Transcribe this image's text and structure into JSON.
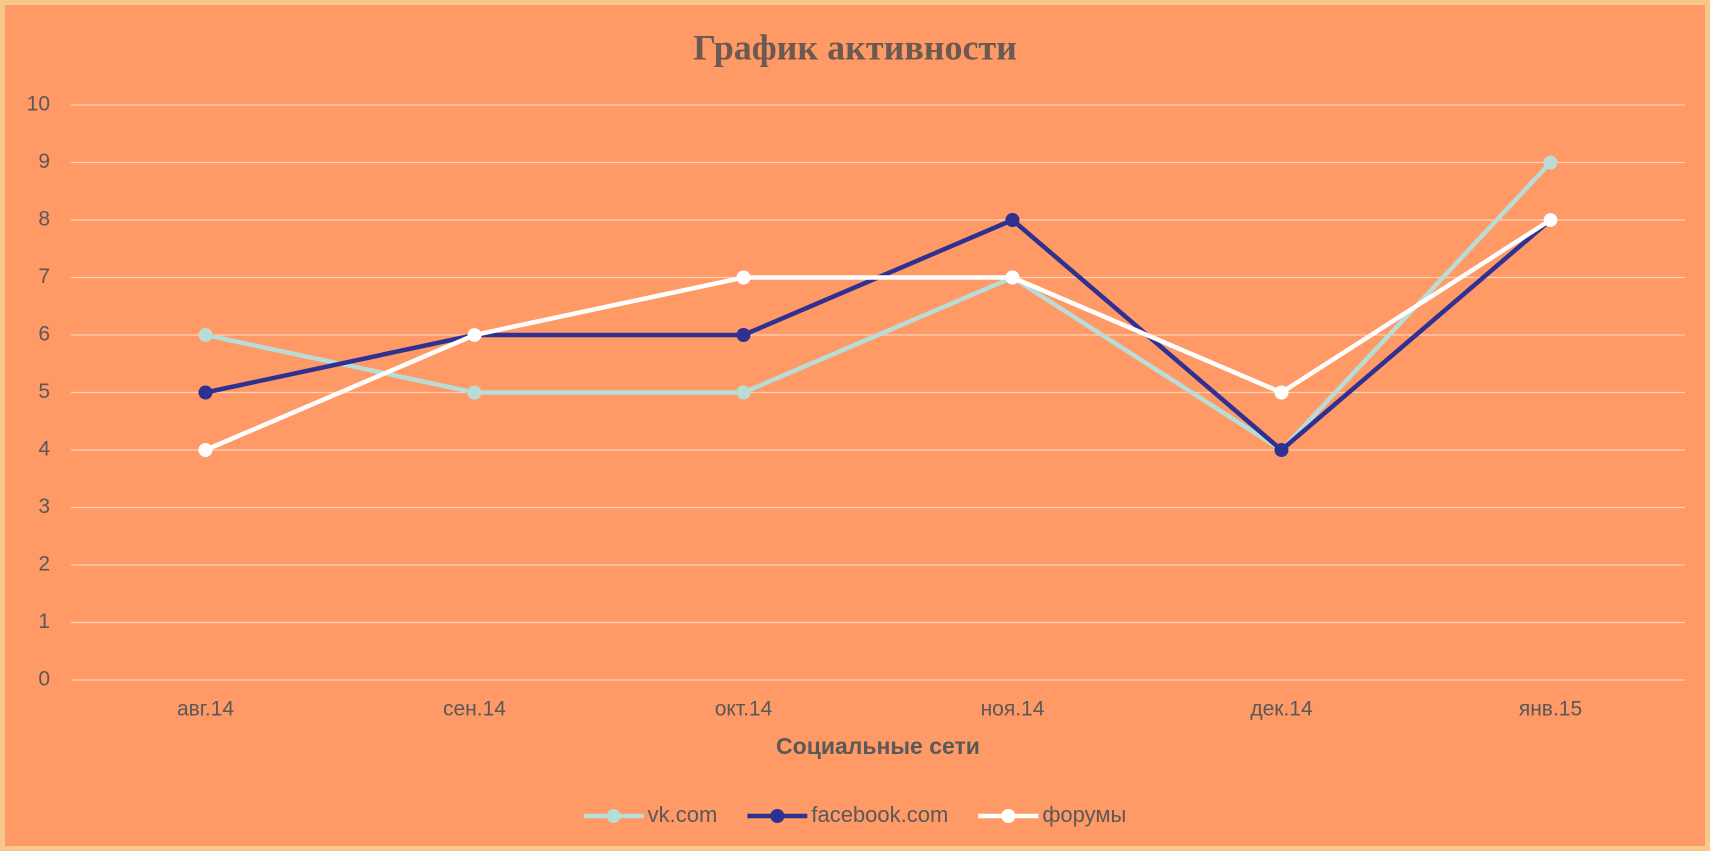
{
  "chart_data": {
    "type": "line",
    "title": "График активности",
    "x_label": "Социальные сети",
    "categories": [
      "авг.14",
      "сен.14",
      "окт.14",
      "ноя.14",
      "дек.14",
      "янв.15"
    ],
    "series": [
      {
        "name": "vk.com",
        "color": "#b8ddd6",
        "values": [
          6,
          5,
          5,
          7,
          4,
          9
        ]
      },
      {
        "name": "facebook.com",
        "color": "#2e3192",
        "values": [
          5,
          6,
          6,
          8,
          4,
          8
        ]
      },
      {
        "name": "форумы",
        "color": "#ffffff",
        "values": [
          4,
          6,
          7,
          7,
          5,
          8
        ]
      }
    ],
    "ylim": [
      0,
      10
    ],
    "yticks": [
      0,
      1,
      2,
      3,
      4,
      5,
      6,
      7,
      8,
      9,
      10
    ],
    "grid": true,
    "legend": "bottom"
  }
}
